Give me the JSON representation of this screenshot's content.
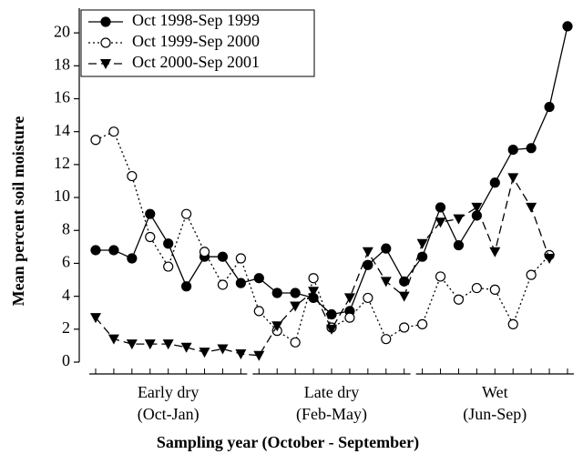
{
  "chart_data": {
    "type": "line",
    "y_label": "Mean percent soil moisture",
    "x_label": "Sampling year (October - September)",
    "groups": [
      [
        "Early dry",
        "(Oct-Jan)"
      ],
      [
        "Late dry",
        "(Feb-May)"
      ],
      [
        "Wet",
        "(Jun-Sep)"
      ]
    ],
    "categories": [
      null,
      null,
      null,
      null,
      null,
      null,
      null,
      null,
      null,
      null,
      null,
      null,
      null,
      null,
      null,
      null,
      null,
      null,
      null,
      null,
      null,
      null,
      null,
      null,
      null,
      null,
      null
    ],
    "ylim": [
      0,
      21.5
    ],
    "yticks": [
      0,
      2,
      4,
      6,
      8,
      10,
      12,
      14,
      16,
      18,
      20
    ],
    "legend": "top-left",
    "series": [
      {
        "name": "Oct 1998-Sep 1999",
        "color": "#000000",
        "marker": "circle-filled",
        "dash": "solid",
        "values": [
          6.8,
          6.8,
          6.3,
          9.0,
          7.2,
          4.6,
          6.4,
          6.4,
          4.8,
          5.1,
          4.2,
          4.2,
          3.9,
          2.9,
          3.1,
          5.9,
          6.9,
          4.9,
          6.4,
          9.4,
          7.1,
          8.9,
          10.9,
          12.9,
          13.0,
          15.5,
          20.4
        ]
      },
      {
        "name": "Oct 1999-Sep 2000",
        "color": "#000000",
        "marker": "circle-open",
        "dash": "dotted",
        "values": [
          13.5,
          14.0,
          11.3,
          7.6,
          5.8,
          9.0,
          6.7,
          4.7,
          6.3,
          3.1,
          1.9,
          1.2,
          5.1,
          2.1,
          2.7,
          3.9,
          1.4,
          2.1,
          2.3,
          5.2,
          3.8,
          4.5,
          4.4,
          2.3,
          5.3,
          6.5,
          null
        ]
      },
      {
        "name": "Oct 2000-Sep 2001",
        "color": "#000000",
        "marker": "triangle-down",
        "dash": "dashed",
        "values": [
          2.7,
          1.4,
          1.1,
          1.1,
          1.1,
          0.9,
          0.6,
          0.8,
          0.5,
          0.4,
          2.2,
          3.4,
          4.3,
          2.0,
          3.9,
          6.7,
          4.9,
          4.0,
          7.2,
          8.5,
          8.7,
          9.4,
          6.7,
          11.2,
          9.4,
          6.3,
          null
        ]
      }
    ]
  }
}
